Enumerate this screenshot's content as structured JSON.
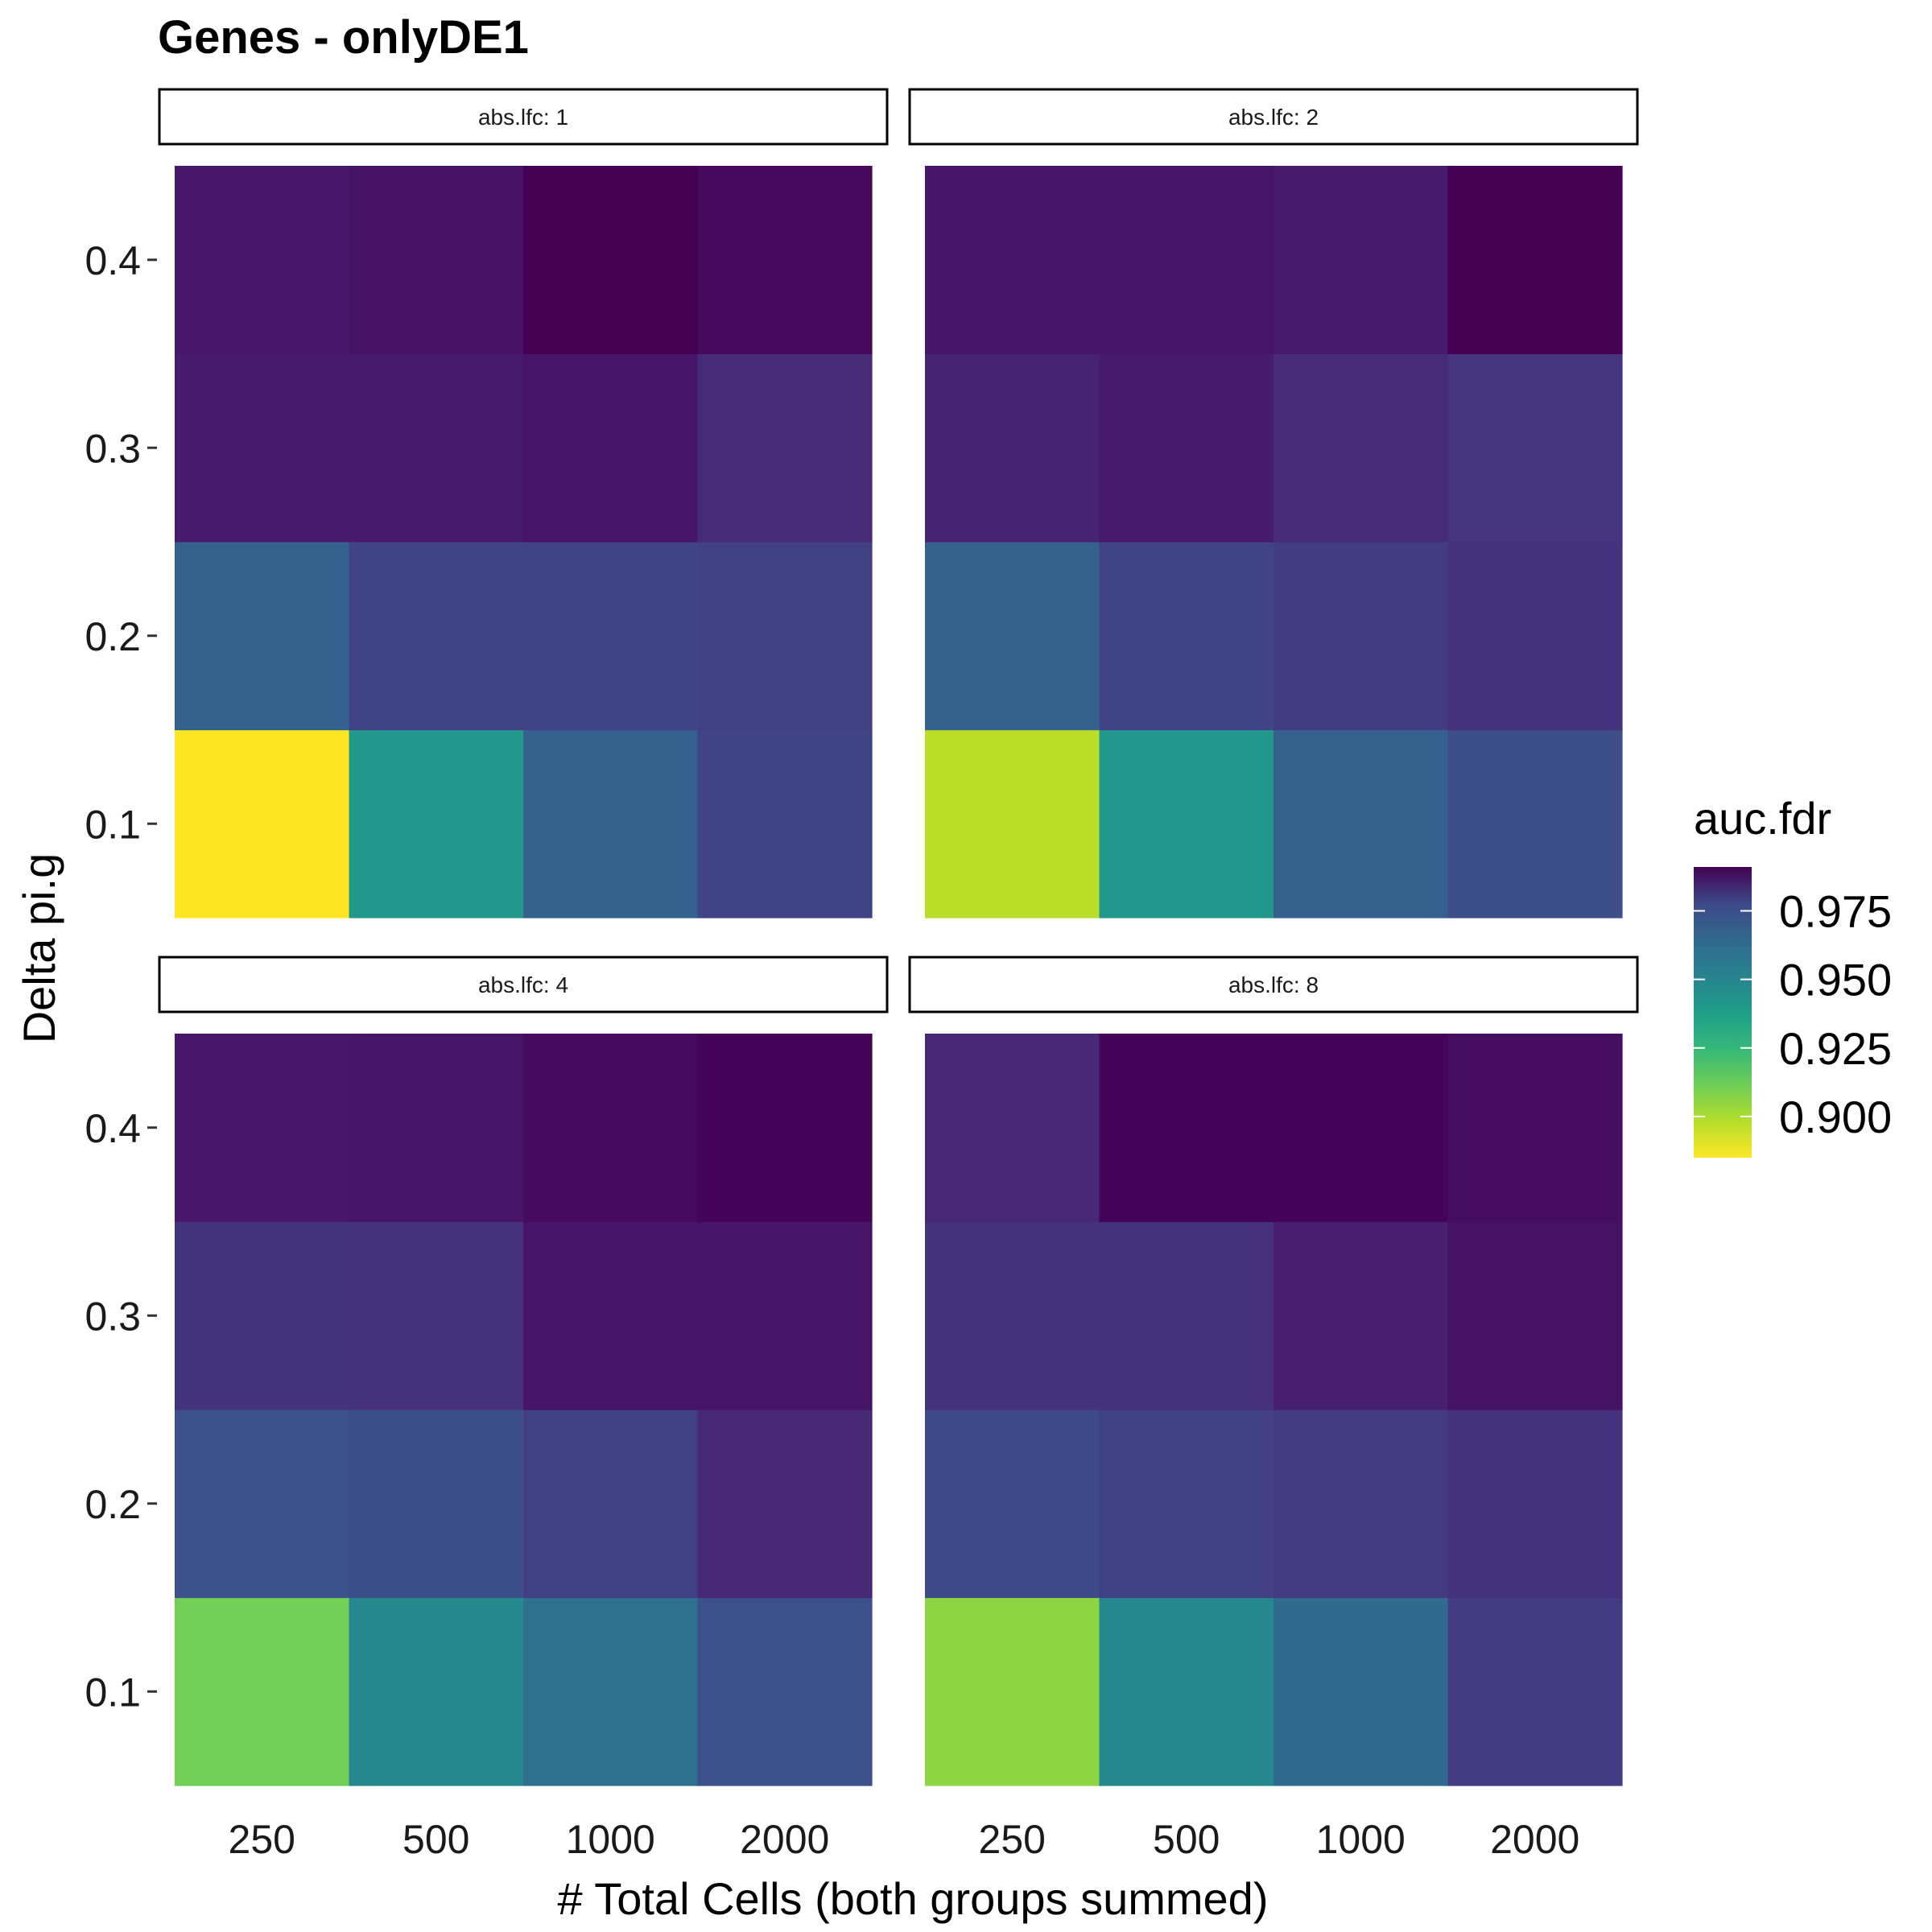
{
  "chart_data": {
    "type": "heatmap",
    "title": "Genes - onlyDE1",
    "xlabel": "# Total Cells (both groups summed)",
    "ylabel": "Delta pi.g",
    "x_categories": [
      "250",
      "500",
      "1000",
      "2000"
    ],
    "y_categories": [
      "0.1",
      "0.2",
      "0.3",
      "0.4"
    ],
    "colorscale": "viridis (reversed)",
    "legend": {
      "title": "auc.fdr",
      "placement": "right",
      "min": 0.885,
      "max": 0.991,
      "ticks": [
        0.9,
        0.925,
        0.95,
        0.975
      ],
      "tick_labels": [
        "0.900",
        "0.925",
        "0.950",
        "0.975"
      ]
    },
    "facets": [
      {
        "label": "abs.lfc: 1",
        "values": [
          [
            0.885,
            0.935,
            0.958,
            0.97
          ],
          [
            0.958,
            0.97,
            0.97,
            0.971
          ],
          [
            0.983,
            0.983,
            0.985,
            0.978
          ],
          [
            0.984,
            0.986,
            0.991,
            0.989
          ]
        ]
      },
      {
        "label": "abs.lfc: 2",
        "values": [
          [
            0.896,
            0.935,
            0.959,
            0.966
          ],
          [
            0.958,
            0.97,
            0.972,
            0.976
          ],
          [
            0.981,
            0.983,
            0.978,
            0.974
          ],
          [
            0.985,
            0.985,
            0.983,
            0.991
          ]
        ]
      },
      {
        "label": "abs.lfc: 4",
        "values": [
          [
            0.908,
            0.942,
            0.952,
            0.965
          ],
          [
            0.965,
            0.966,
            0.971,
            0.979
          ],
          [
            0.975,
            0.976,
            0.985,
            0.985
          ],
          [
            0.984,
            0.985,
            0.988,
            0.99
          ]
        ]
      },
      {
        "label": "abs.lfc: 8",
        "values": [
          [
            0.903,
            0.942,
            0.954,
            0.972
          ],
          [
            0.967,
            0.971,
            0.973,
            0.976
          ],
          [
            0.976,
            0.976,
            0.982,
            0.986
          ],
          [
            0.979,
            0.99,
            0.99,
            0.987
          ]
        ]
      }
    ]
  }
}
